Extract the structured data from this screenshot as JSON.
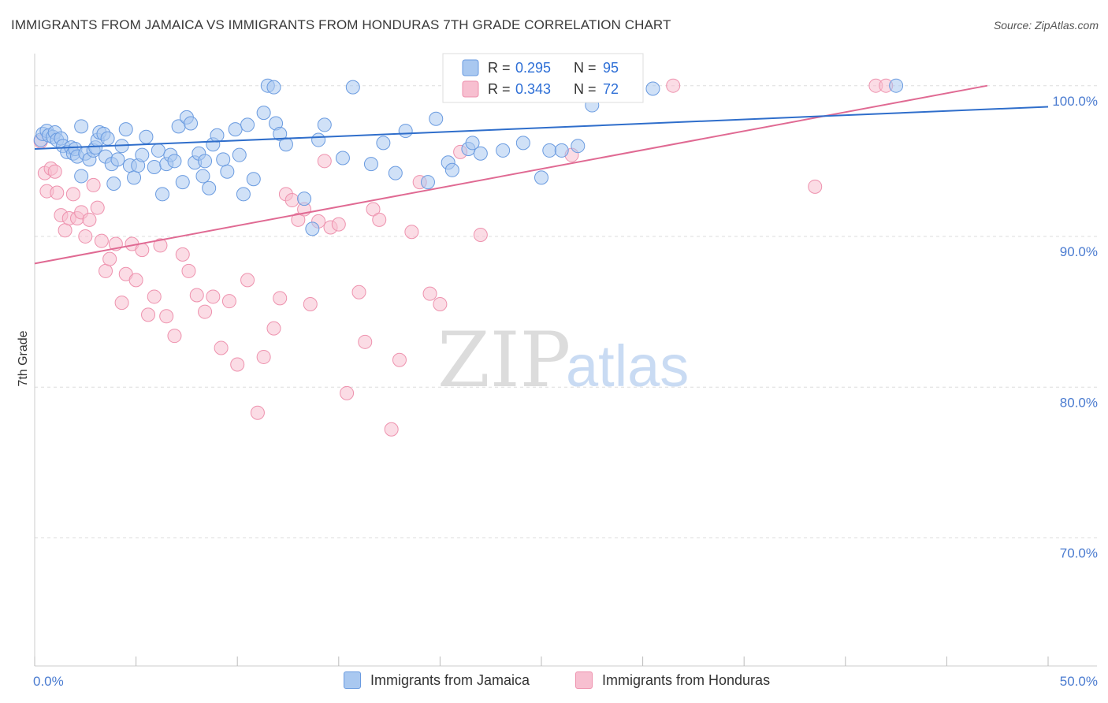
{
  "header": {
    "title": "IMMIGRANTS FROM JAMAICA VS IMMIGRANTS FROM HONDURAS 7TH GRADE CORRELATION CHART",
    "source": "Source: ZipAtlas.com"
  },
  "watermark": {
    "zip": "ZIP",
    "atlas": "atlas"
  },
  "legend_box": {
    "jamaica": {
      "r_label": "R = ",
      "r_value": "0.295",
      "n_label": "N = ",
      "n_value": "95"
    },
    "honduras": {
      "r_label": "R = ",
      "r_value": "0.343",
      "n_label": "N = ",
      "n_value": "72"
    }
  },
  "bottom_legend": {
    "jamaica": "Immigrants from Jamaica",
    "honduras": "Immigrants from Honduras"
  },
  "colors": {
    "jamaica_fill": "#a9c8f0",
    "jamaica_stroke": "#6a9be0",
    "jamaica_line": "#2f6ecb",
    "honduras_fill": "#f7bfd0",
    "honduras_stroke": "#ee92ae",
    "honduras_line": "#e06a93",
    "tick_text": "#4a7bd0",
    "grid": "#dddddd"
  },
  "chart_data": {
    "type": "scatter",
    "title": "IMMIGRANTS FROM JAMAICA VS IMMIGRANTS FROM HONDURAS 7TH GRADE CORRELATION CHART",
    "xlabel": "",
    "ylabel": "7th Grade",
    "xlim": [
      0,
      50
    ],
    "ylim": [
      60,
      100
    ],
    "x_ticks": [
      0,
      5,
      10,
      15,
      20,
      25,
      30,
      35,
      40,
      45,
      50
    ],
    "x_tick_labels": [
      {
        "value": 0,
        "label": "0.0%"
      },
      {
        "value": 50,
        "label": "50.0%"
      }
    ],
    "y_tick_labels": [
      {
        "value": 97.5,
        "label": "100.0%"
      },
      {
        "value": 87.5,
        "label": "90.0%"
      },
      {
        "value": 77.5,
        "label": "80.0%"
      },
      {
        "value": 67.5,
        "label": "70.0%"
      }
    ],
    "grid_y": [
      98.5,
      88.5,
      78.5,
      68.5
    ],
    "series": [
      {
        "name": "Immigrants from Jamaica",
        "R": 0.295,
        "N": 95,
        "trend": [
          [
            0,
            94.3
          ],
          [
            50,
            97.1
          ]
        ],
        "points": [
          [
            0.3,
            94.9
          ],
          [
            0.4,
            95.3
          ],
          [
            0.6,
            95.5
          ],
          [
            0.7,
            95.2
          ],
          [
            0.9,
            95.1
          ],
          [
            1.0,
            95.4
          ],
          [
            1.1,
            94.9
          ],
          [
            1.3,
            95.0
          ],
          [
            1.4,
            94.5
          ],
          [
            1.6,
            94.1
          ],
          [
            1.8,
            94.4
          ],
          [
            1.9,
            94.0
          ],
          [
            2.0,
            94.3
          ],
          [
            2.1,
            93.8
          ],
          [
            2.3,
            92.5
          ],
          [
            2.3,
            95.8
          ],
          [
            2.5,
            94.0
          ],
          [
            2.7,
            93.6
          ],
          [
            2.9,
            94.2
          ],
          [
            3.0,
            94.4
          ],
          [
            3.1,
            94.9
          ],
          [
            3.2,
            95.4
          ],
          [
            3.4,
            95.3
          ],
          [
            3.5,
            93.8
          ],
          [
            3.6,
            95.0
          ],
          [
            3.8,
            93.3
          ],
          [
            3.9,
            92.0
          ],
          [
            4.1,
            93.6
          ],
          [
            4.3,
            94.5
          ],
          [
            4.5,
            95.6
          ],
          [
            4.7,
            93.2
          ],
          [
            4.9,
            92.4
          ],
          [
            5.1,
            93.2
          ],
          [
            5.3,
            93.9
          ],
          [
            5.5,
            95.1
          ],
          [
            5.9,
            93.1
          ],
          [
            6.1,
            94.2
          ],
          [
            6.3,
            91.3
          ],
          [
            6.5,
            93.3
          ],
          [
            6.7,
            93.9
          ],
          [
            6.9,
            93.5
          ],
          [
            7.1,
            95.8
          ],
          [
            7.3,
            92.1
          ],
          [
            7.5,
            96.4
          ],
          [
            7.7,
            96.0
          ],
          [
            7.9,
            93.4
          ],
          [
            8.1,
            94.0
          ],
          [
            8.3,
            92.5
          ],
          [
            8.4,
            93.5
          ],
          [
            8.6,
            91.7
          ],
          [
            8.8,
            94.6
          ],
          [
            9.0,
            95.2
          ],
          [
            9.3,
            93.6
          ],
          [
            9.5,
            92.8
          ],
          [
            9.9,
            95.6
          ],
          [
            10.1,
            93.9
          ],
          [
            10.3,
            91.3
          ],
          [
            10.5,
            95.9
          ],
          [
            10.8,
            92.3
          ],
          [
            11.3,
            96.7
          ],
          [
            11.5,
            98.5
          ],
          [
            11.8,
            98.4
          ],
          [
            11.9,
            96.0
          ],
          [
            12.1,
            95.3
          ],
          [
            12.4,
            94.6
          ],
          [
            13.3,
            91.0
          ],
          [
            13.7,
            89.0
          ],
          [
            14.0,
            94.9
          ],
          [
            14.3,
            95.9
          ],
          [
            15.2,
            93.7
          ],
          [
            15.7,
            98.4
          ],
          [
            16.6,
            93.3
          ],
          [
            17.2,
            94.7
          ],
          [
            17.8,
            92.7
          ],
          [
            18.3,
            95.5
          ],
          [
            19.4,
            92.1
          ],
          [
            19.8,
            96.3
          ],
          [
            20.4,
            93.4
          ],
          [
            20.6,
            92.9
          ],
          [
            21.4,
            94.3
          ],
          [
            21.6,
            94.7
          ],
          [
            22.0,
            94.0
          ],
          [
            23.1,
            94.2
          ],
          [
            24.1,
            94.7
          ],
          [
            25.0,
            92.4
          ],
          [
            25.4,
            94.2
          ],
          [
            25.8,
            98.5
          ],
          [
            26.0,
            94.2
          ],
          [
            26.8,
            94.5
          ],
          [
            27.2,
            98.0
          ],
          [
            27.5,
            97.2
          ],
          [
            28.2,
            98.2
          ],
          [
            29.5,
            99.5
          ],
          [
            30.5,
            98.3
          ],
          [
            42.5,
            98.5
          ]
        ]
      },
      {
        "name": "Immigrants from Honduras",
        "R": 0.343,
        "N": 72,
        "trend": [
          [
            0,
            86.7
          ],
          [
            47,
            98.5
          ]
        ],
        "points": [
          [
            0.3,
            94.8
          ],
          [
            0.5,
            92.7
          ],
          [
            0.6,
            91.5
          ],
          [
            0.8,
            93.0
          ],
          [
            1.0,
            92.8
          ],
          [
            1.1,
            91.4
          ],
          [
            1.3,
            89.9
          ],
          [
            1.5,
            88.9
          ],
          [
            1.7,
            89.7
          ],
          [
            1.9,
            91.3
          ],
          [
            2.1,
            89.7
          ],
          [
            2.3,
            90.1
          ],
          [
            2.5,
            88.5
          ],
          [
            2.7,
            89.6
          ],
          [
            2.9,
            91.9
          ],
          [
            3.1,
            90.4
          ],
          [
            3.3,
            88.2
          ],
          [
            3.5,
            86.2
          ],
          [
            3.7,
            87.0
          ],
          [
            4.0,
            88.0
          ],
          [
            4.3,
            84.1
          ],
          [
            4.5,
            86.0
          ],
          [
            4.8,
            88.0
          ],
          [
            5.0,
            85.6
          ],
          [
            5.3,
            87.6
          ],
          [
            5.6,
            83.3
          ],
          [
            5.9,
            84.5
          ],
          [
            6.2,
            87.9
          ],
          [
            6.5,
            83.2
          ],
          [
            6.9,
            81.9
          ],
          [
            7.3,
            87.3
          ],
          [
            7.6,
            86.2
          ],
          [
            8.0,
            84.6
          ],
          [
            8.4,
            83.5
          ],
          [
            8.8,
            84.5
          ],
          [
            9.2,
            81.1
          ],
          [
            9.6,
            84.2
          ],
          [
            10.0,
            80.0
          ],
          [
            10.5,
            85.6
          ],
          [
            11.0,
            76.8
          ],
          [
            11.3,
            80.5
          ],
          [
            11.8,
            82.4
          ],
          [
            12.1,
            84.4
          ],
          [
            12.4,
            91.3
          ],
          [
            12.7,
            90.9
          ],
          [
            13.0,
            89.6
          ],
          [
            13.3,
            90.3
          ],
          [
            13.6,
            84.0
          ],
          [
            14.0,
            89.5
          ],
          [
            14.3,
            93.5
          ],
          [
            14.6,
            89.1
          ],
          [
            15.0,
            89.3
          ],
          [
            15.4,
            78.1
          ],
          [
            16.0,
            84.8
          ],
          [
            16.3,
            81.5
          ],
          [
            16.7,
            90.3
          ],
          [
            17.0,
            89.6
          ],
          [
            17.6,
            75.7
          ],
          [
            18.0,
            80.3
          ],
          [
            18.6,
            88.8
          ],
          [
            19.0,
            92.1
          ],
          [
            19.5,
            84.7
          ],
          [
            20.0,
            84.0
          ],
          [
            21.0,
            94.1
          ],
          [
            22.0,
            88.6
          ],
          [
            22.5,
            99.0
          ],
          [
            25.0,
            98.5
          ],
          [
            26.5,
            93.9
          ],
          [
            31.5,
            98.5
          ],
          [
            38.5,
            91.8
          ],
          [
            41.5,
            98.5
          ],
          [
            42.0,
            98.5
          ]
        ]
      }
    ],
    "legend_placement": "top-center"
  }
}
